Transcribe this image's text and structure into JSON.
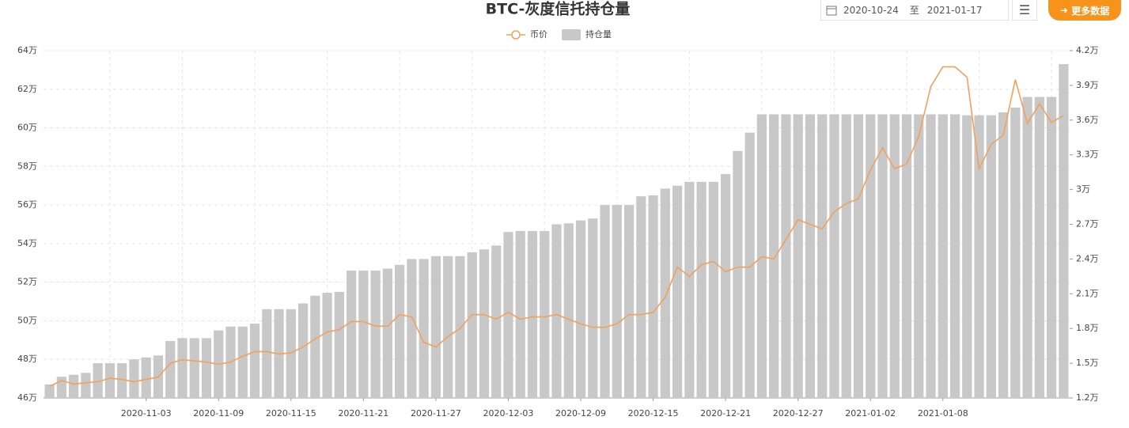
{
  "toolbar": {
    "start_date": "2020-10-24",
    "separator": "至",
    "end_date": "2021-01-17",
    "more_button": "更多数据"
  },
  "chart_data": {
    "type": "bar",
    "title": "BTC-灰度信托持仓量",
    "categories": [
      null,
      null,
      null,
      null,
      null,
      null,
      null,
      null,
      "2020-11-03",
      null,
      null,
      null,
      null,
      null,
      "2020-11-09",
      null,
      null,
      null,
      null,
      null,
      "2020-11-15",
      null,
      null,
      null,
      null,
      null,
      "2020-11-21",
      null,
      null,
      null,
      null,
      null,
      "2020-11-27",
      null,
      null,
      null,
      null,
      null,
      "2020-12-03",
      null,
      null,
      null,
      null,
      null,
      "2020-12-09",
      null,
      null,
      null,
      null,
      null,
      "2020-12-15",
      null,
      null,
      null,
      null,
      null,
      "2020-12-21",
      null,
      null,
      null,
      null,
      null,
      "2020-12-27",
      null,
      null,
      null,
      null,
      null,
      "2021-01-02",
      null,
      null,
      null,
      null,
      null,
      "2021-01-08",
      null,
      null,
      null,
      null,
      null,
      null,
      null,
      null,
      null,
      null
    ],
    "series": [
      {
        "name": "币价",
        "type": "line",
        "axis": "y2",
        "color": "#f4a05a",
        "values": [
          1.3,
          1.35,
          1.32,
          1.33,
          1.34,
          1.37,
          1.36,
          1.34,
          1.36,
          1.38,
          1.5,
          1.53,
          1.52,
          1.51,
          1.49,
          1.51,
          1.56,
          1.6,
          1.6,
          1.58,
          1.59,
          1.64,
          1.71,
          1.77,
          1.79,
          1.86,
          1.86,
          1.82,
          1.82,
          1.92,
          1.9,
          1.68,
          1.64,
          1.73,
          1.8,
          1.92,
          1.92,
          1.88,
          1.94,
          1.88,
          1.9,
          1.9,
          1.92,
          1.88,
          1.84,
          1.81,
          1.81,
          1.84,
          1.92,
          1.92,
          1.94,
          2.07,
          2.33,
          2.25,
          2.35,
          2.38,
          2.29,
          2.33,
          2.33,
          2.42,
          2.4,
          2.57,
          2.74,
          2.7,
          2.66,
          2.81,
          2.88,
          2.92,
          3.17,
          3.36,
          3.18,
          3.22,
          3.46,
          3.89,
          4.06,
          4.06,
          3.97,
          3.18,
          3.39,
          3.47,
          3.95,
          3.57,
          3.74,
          3.58,
          3.64
        ]
      },
      {
        "name": "持仓量",
        "type": "bar",
        "color": "#c8c8c8",
        "values": [
          46.7,
          47.1,
          47.2,
          47.3,
          47.8,
          47.8,
          47.8,
          48.0,
          48.1,
          48.2,
          48.95,
          49.1,
          49.1,
          49.1,
          49.5,
          49.7,
          49.7,
          49.85,
          50.6,
          50.6,
          50.6,
          50.9,
          51.3,
          51.45,
          51.5,
          52.6,
          52.6,
          52.6,
          52.7,
          52.9,
          53.2,
          53.2,
          53.35,
          53.35,
          53.35,
          53.55,
          53.7,
          53.9,
          54.6,
          54.65,
          54.65,
          54.65,
          55.0,
          55.05,
          55.2,
          55.3,
          56.0,
          56.0,
          56.0,
          56.45,
          56.5,
          56.85,
          57.0,
          57.2,
          57.2,
          57.2,
          57.6,
          58.8,
          59.75,
          60.7,
          60.7,
          60.7,
          60.7,
          60.7,
          60.7,
          60.7,
          60.7,
          60.7,
          60.7,
          60.7,
          60.7,
          60.7,
          60.7,
          60.7,
          60.7,
          60.7,
          60.65,
          60.65,
          60.65,
          60.8,
          61.05,
          61.6,
          61.6,
          61.6,
          63.3
        ]
      }
    ],
    "ylim": [
      46,
      64
    ],
    "yticks": [
      {
        "value": 46,
        "label": "46万"
      },
      {
        "value": 48,
        "label": "48万"
      },
      {
        "value": 50,
        "label": "50万"
      },
      {
        "value": 52,
        "label": "52万"
      },
      {
        "value": 54,
        "label": "54万"
      },
      {
        "value": 56,
        "label": "56万"
      },
      {
        "value": 58,
        "label": "58万"
      },
      {
        "value": 60,
        "label": "60万"
      },
      {
        "value": 62,
        "label": "62万"
      },
      {
        "value": 64,
        "label": "64万"
      }
    ],
    "y2lim": [
      1.2,
      4.2
    ],
    "y2ticks": [
      {
        "value": 1.2,
        "label": "1.2万"
      },
      {
        "value": 1.5,
        "label": "1.5万"
      },
      {
        "value": 1.8,
        "label": "1.8万"
      },
      {
        "value": 2.1,
        "label": "2.1万"
      },
      {
        "value": 2.4,
        "label": "2.4万"
      },
      {
        "value": 2.7,
        "label": "2.7万"
      },
      {
        "value": 3,
        "label": "3万"
      },
      {
        "value": 3.3,
        "label": "3.3万"
      },
      {
        "value": 3.6,
        "label": "3.6万"
      },
      {
        "value": 3.9,
        "label": "3.9万"
      },
      {
        "value": 4.2,
        "label": "4.2万"
      }
    ],
    "grid": true,
    "legend": "top"
  }
}
